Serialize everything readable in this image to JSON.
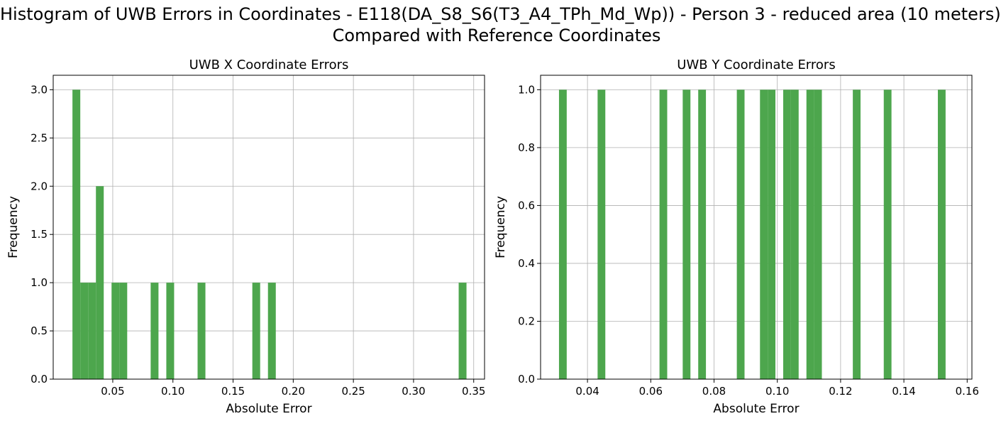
{
  "figure": {
    "title_line1": "Histogram of UWB Errors in Coordinates - E118(DA_S8_S6(T3_A4_TPh_Md_Wp)) - Person 3 - reduced area (10 meters)",
    "title_line2": "Compared with Reference Coordinates",
    "bar_color": "#4da64d"
  },
  "chart_data": [
    {
      "type": "bar",
      "title": "UWB X Coordinate Errors",
      "xlabel": "Absolute Error",
      "ylabel": "Frequency",
      "xlim": [
        0.0005,
        0.359
      ],
      "ylim": [
        0,
        3.15
      ],
      "grid": true,
      "xticks": [
        0.05,
        0.1,
        0.15,
        0.2,
        0.25,
        0.3,
        0.35
      ],
      "xtick_labels": [
        "0.05",
        "0.10",
        "0.15",
        "0.20",
        "0.25",
        "0.30",
        "0.35"
      ],
      "yticks": [
        0.0,
        0.5,
        1.0,
        1.5,
        2.0,
        2.5,
        3.0
      ],
      "ytick_labels": [
        "0.0",
        "0.5",
        "1.0",
        "1.5",
        "2.0",
        "2.5",
        "3.0"
      ],
      "bin_width": 0.0065,
      "bins": [
        {
          "start": 0.0165,
          "count": 3
        },
        {
          "start": 0.023,
          "count": 1
        },
        {
          "start": 0.0295,
          "count": 1
        },
        {
          "start": 0.036,
          "count": 2
        },
        {
          "start": 0.049,
          "count": 1
        },
        {
          "start": 0.0555,
          "count": 1
        },
        {
          "start": 0.0815,
          "count": 1
        },
        {
          "start": 0.0945,
          "count": 1
        },
        {
          "start": 0.1205,
          "count": 1
        },
        {
          "start": 0.166,
          "count": 1
        },
        {
          "start": 0.179,
          "count": 1
        },
        {
          "start": 0.3375,
          "count": 1
        }
      ]
    },
    {
      "type": "bar",
      "title": "UWB Y Coordinate Errors",
      "xlabel": "Absolute Error",
      "ylabel": "Frequency",
      "xlim": [
        0.02518,
        0.1615
      ],
      "ylim": [
        0,
        1.05
      ],
      "grid": true,
      "xticks": [
        0.04,
        0.06,
        0.08,
        0.1,
        0.12,
        0.14,
        0.16
      ],
      "xtick_labels": [
        "0.04",
        "0.06",
        "0.08",
        "0.10",
        "0.12",
        "0.14",
        "0.16"
      ],
      "yticks": [
        0.0,
        0.2,
        0.4,
        0.6,
        0.8,
        1.0
      ],
      "ytick_labels": [
        "0.0",
        "0.2",
        "0.4",
        "0.6",
        "0.8",
        "1.0"
      ],
      "bin_width": 0.00244,
      "bins": [
        {
          "start": 0.031,
          "count": 1
        },
        {
          "start": 0.0432,
          "count": 1
        },
        {
          "start": 0.06276,
          "count": 1
        },
        {
          "start": 0.0701,
          "count": 1
        },
        {
          "start": 0.075,
          "count": 1
        },
        {
          "start": 0.0872,
          "count": 1
        },
        {
          "start": 0.09452,
          "count": 1
        },
        {
          "start": 0.09696,
          "count": 1
        },
        {
          "start": 0.10186,
          "count": 1
        },
        {
          "start": 0.1043,
          "count": 1
        },
        {
          "start": 0.1092,
          "count": 1
        },
        {
          "start": 0.11164,
          "count": 1
        },
        {
          "start": 0.12386,
          "count": 1
        },
        {
          "start": 0.13364,
          "count": 1
        },
        {
          "start": 0.15074,
          "count": 1
        }
      ]
    }
  ]
}
